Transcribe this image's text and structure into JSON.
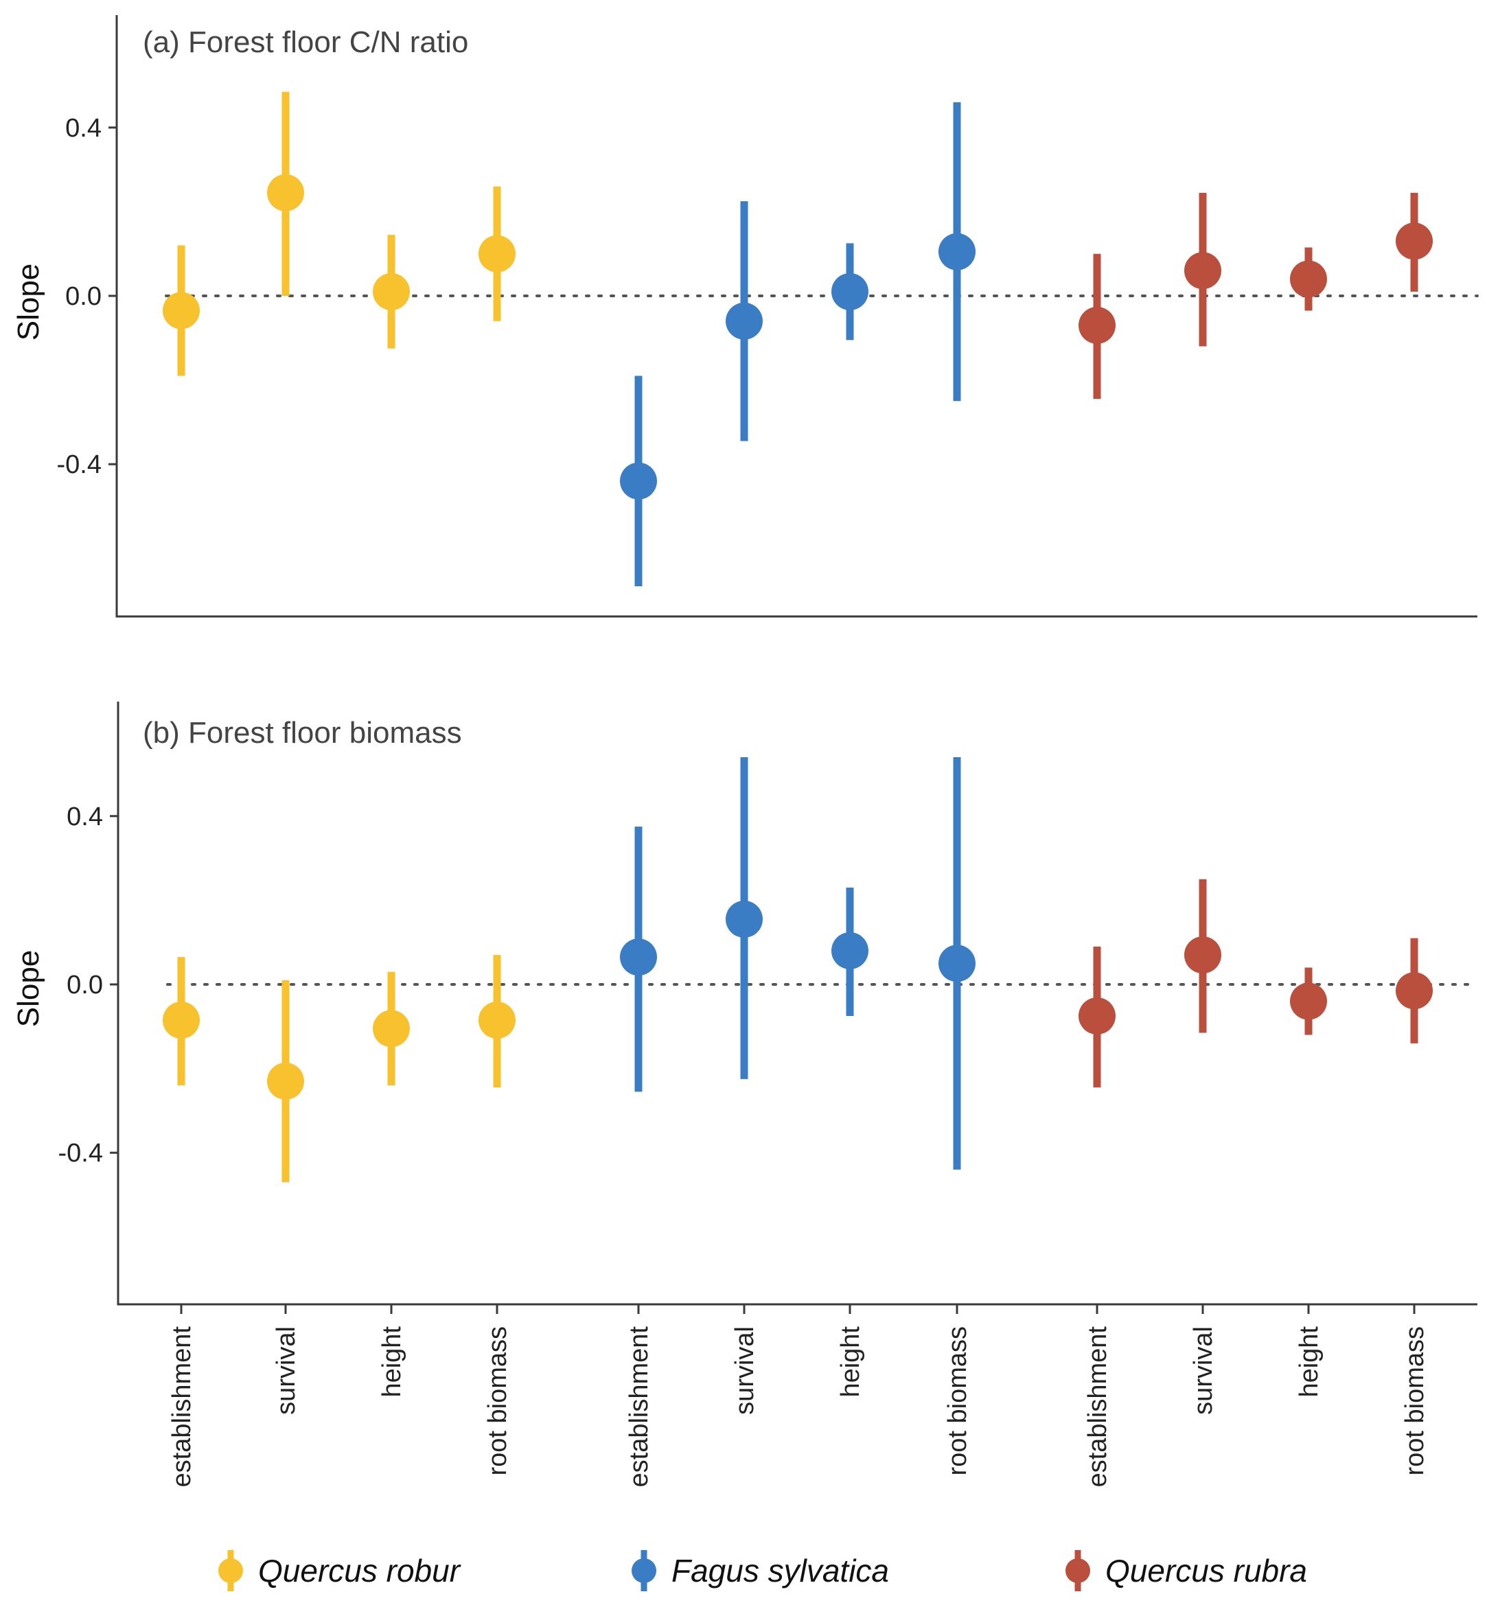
{
  "legend": [
    {
      "key": "robur",
      "label": "Quercus robur"
    },
    {
      "key": "fagus",
      "label": "Fagus sylvatica"
    },
    {
      "key": "rubra",
      "label": "Quercus rubra"
    }
  ],
  "colors": {
    "robur": "#F7C22E",
    "fagus": "#3A7DC4",
    "rubra": "#B94F3C"
  },
  "categories": [
    "establishment",
    "survival",
    "height",
    "root biomass",
    "establishment",
    "survival",
    "height",
    "root biomass",
    "establishment",
    "survival",
    "height",
    "root biomass"
  ],
  "category_species": [
    "robur",
    "robur",
    "robur",
    "robur",
    "fagus",
    "fagus",
    "fagus",
    "fagus",
    "rubra",
    "rubra",
    "rubra",
    "rubra"
  ],
  "chart_data": [
    {
      "type": "scatter",
      "panel": "a",
      "title": "(a) Forest floor C/N ratio",
      "ylabel": "Slope",
      "xlabel": "",
      "ylim": [
        -0.77,
        0.65
      ],
      "yticks": [
        0.4,
        0.0,
        -0.4
      ],
      "ytick_labels": [
        "0.4",
        "0.0",
        "-0.4"
      ],
      "reference_line": 0.0,
      "series": [
        {
          "name": "Quercus robur",
          "values": [
            -0.035,
            0.245,
            0.01,
            0.1
          ],
          "lower": [
            -0.19,
            0.0,
            -0.125,
            -0.06
          ],
          "upper": [
            0.12,
            0.485,
            0.145,
            0.26
          ]
        },
        {
          "name": "Fagus sylvatica",
          "values": [
            -0.44,
            -0.06,
            0.01,
            0.105
          ],
          "lower": [
            -0.69,
            -0.345,
            -0.105,
            -0.25
          ],
          "upper": [
            -0.19,
            0.225,
            0.125,
            0.46
          ]
        },
        {
          "name": "Quercus rubra",
          "values": [
            -0.07,
            0.06,
            0.04,
            0.13
          ],
          "lower": [
            -0.245,
            -0.12,
            -0.035,
            0.01
          ],
          "upper": [
            0.1,
            0.245,
            0.115,
            0.245
          ]
        }
      ]
    },
    {
      "type": "scatter",
      "panel": "b",
      "title": "(b) Forest floor biomass",
      "ylabel": "Slope",
      "xlabel": "",
      "ylim": [
        -0.77,
        0.65
      ],
      "yticks": [
        0.4,
        0.0,
        -0.4
      ],
      "ytick_labels": [
        "0.4",
        "0.0",
        "-0.4"
      ],
      "reference_line": 0.0,
      "series": [
        {
          "name": "Quercus robur",
          "values": [
            -0.085,
            -0.23,
            -0.105,
            -0.085
          ],
          "lower": [
            -0.24,
            -0.47,
            -0.24,
            -0.245
          ],
          "upper": [
            0.065,
            0.01,
            0.03,
            0.07
          ]
        },
        {
          "name": "Fagus sylvatica",
          "values": [
            0.065,
            0.155,
            0.08,
            0.05
          ],
          "lower": [
            -0.255,
            -0.225,
            -0.075,
            -0.44
          ],
          "upper": [
            0.375,
            0.54,
            0.23,
            0.54
          ]
        },
        {
          "name": "Quercus rubra",
          "values": [
            -0.075,
            0.07,
            -0.04,
            -0.015
          ],
          "lower": [
            -0.245,
            -0.115,
            -0.12,
            -0.14
          ],
          "upper": [
            0.09,
            0.25,
            0.04,
            0.11
          ]
        }
      ]
    }
  ]
}
